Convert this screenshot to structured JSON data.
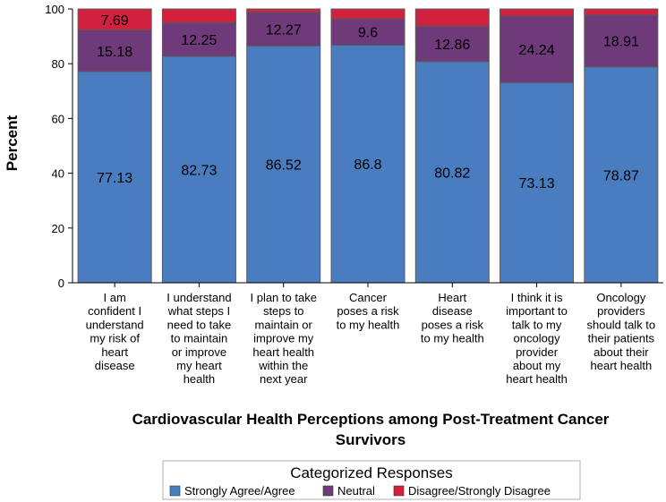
{
  "chart_data": {
    "type": "bar",
    "stacked": true,
    "ylabel": "Percent",
    "xlabel_lines": [
      "Cardiovascular Health Perceptions among Post-Treatment Cancer",
      "Survivors"
    ],
    "ylim": [
      0,
      100
    ],
    "yticks": [
      0,
      20,
      40,
      60,
      80,
      100
    ],
    "categories": [
      [
        "I am",
        "confident I",
        "understand",
        "my risk of",
        "heart",
        "disease"
      ],
      [
        "I understand",
        "what steps I",
        "need to take",
        "to maintain",
        "or improve",
        "my heart",
        "health"
      ],
      [
        "I plan to take",
        "steps to",
        "maintain or",
        "improve my",
        "heart health",
        "within the",
        "next year"
      ],
      [
        "Cancer",
        "poses a risk",
        "to my health"
      ],
      [
        "Heart",
        "disease",
        "poses a risk",
        "to my health"
      ],
      [
        "I think it is",
        "important to",
        "talk to my",
        "oncology",
        "provider",
        "about my",
        "heart health"
      ],
      [
        "Oncology",
        "providers",
        "should talk to",
        "their patients",
        "about their",
        "heart health"
      ]
    ],
    "series": [
      {
        "name": "Strongly Agree/Agree",
        "color": "#4a7cc0",
        "values": [
          77.13,
          82.73,
          86.52,
          86.8,
          80.82,
          73.13,
          78.87
        ],
        "labels": [
          "77.13",
          "82.73",
          "86.52",
          "86.8",
          "80.82",
          "73.13",
          "78.87"
        ]
      },
      {
        "name": "Neutral",
        "color": "#6e3a7a",
        "values": [
          15.18,
          12.25,
          12.27,
          9.6,
          12.86,
          24.24,
          18.91
        ],
        "labels": [
          "15.18",
          "12.25",
          "12.27",
          "9.6",
          "12.86",
          "24.24",
          "18.91"
        ]
      },
      {
        "name": "Disagree/Strongly Disagree",
        "color": "#d2213f",
        "values": [
          7.69,
          5.02,
          1.21,
          3.6,
          6.32,
          2.63,
          2.22
        ],
        "labels": [
          "7.69",
          "",
          "",
          "",
          "",
          "",
          ""
        ]
      }
    ],
    "legend_title": "Categorized Responses",
    "legend_position": "bottom"
  }
}
